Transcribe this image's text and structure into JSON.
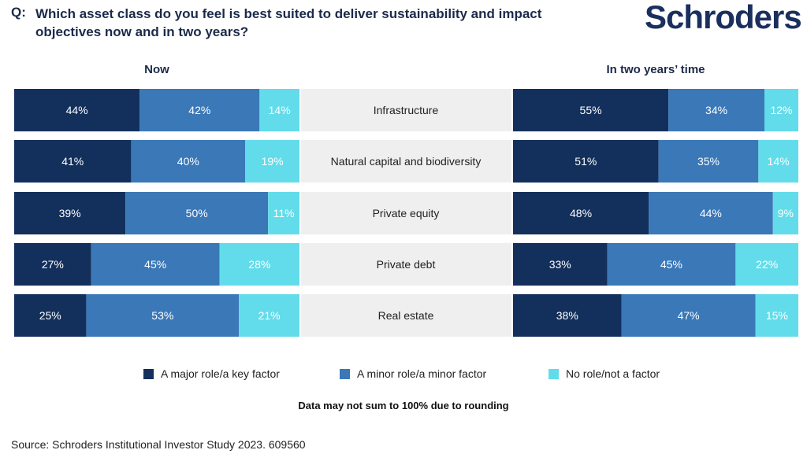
{
  "header": {
    "q_prefix": "Q:",
    "question": "Which asset class do you feel is best suited to deliver sustainability and impact objectives now and in two years?",
    "logo": "Schroders"
  },
  "columns": {
    "now": "Now",
    "two_years": "In two years’ time"
  },
  "colors": {
    "major": "#13305c",
    "minor": "#3a78b7",
    "none": "#62dcea",
    "category_bg": "#efefef"
  },
  "chart_data": {
    "type": "bar",
    "orientation": "horizontal",
    "stacked": true,
    "unit": "%",
    "categories": [
      "Infrastructure",
      "Natural capital and biodiversity",
      "Private equity",
      "Private debt",
      "Real estate"
    ],
    "panels": [
      {
        "title": "Now",
        "series": [
          {
            "name": "A major role/a key factor",
            "values": [
              44,
              41,
              39,
              27,
              25
            ]
          },
          {
            "name": "A minor role/a minor factor",
            "values": [
              42,
              40,
              50,
              45,
              53
            ]
          },
          {
            "name": "No role/not a factor",
            "values": [
              14,
              19,
              11,
              28,
              21
            ]
          }
        ]
      },
      {
        "title": "In two years’ time",
        "series": [
          {
            "name": "A major role/a key factor",
            "values": [
              55,
              51,
              48,
              33,
              38
            ]
          },
          {
            "name": "A minor role/a minor factor",
            "values": [
              34,
              35,
              44,
              45,
              47
            ]
          },
          {
            "name": "No role/not a factor",
            "values": [
              12,
              14,
              9,
              22,
              15
            ]
          }
        ]
      }
    ],
    "legend": [
      "A major role/a key factor",
      "A minor role/a minor factor",
      "No role/not a factor"
    ],
    "legend_position": "bottom"
  },
  "footer": {
    "note": "Data may not sum to 100% due to rounding",
    "source": "Source: Schroders Institutional Investor Study 2023. 609560"
  }
}
